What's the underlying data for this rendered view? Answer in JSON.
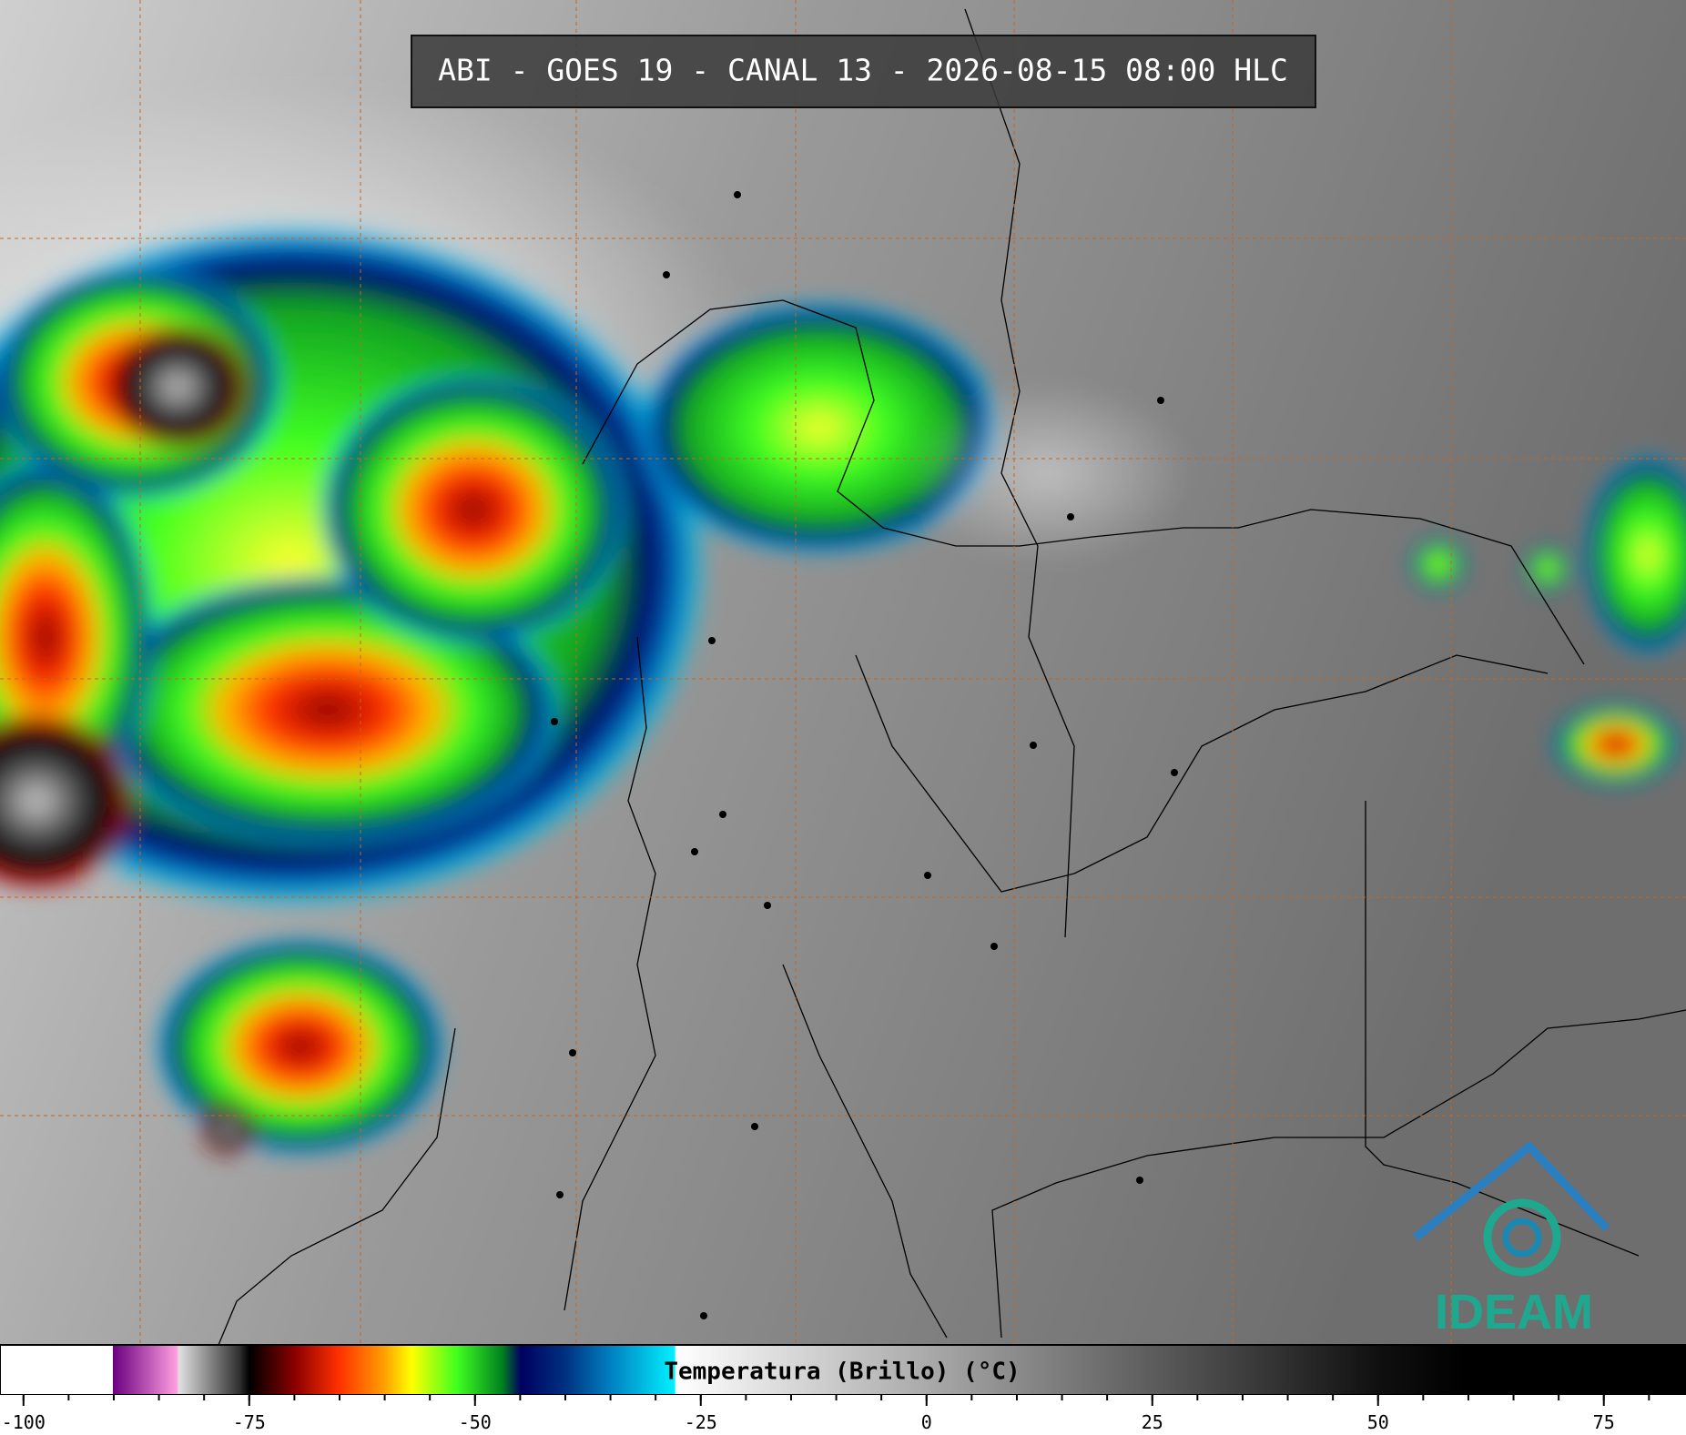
{
  "title": "ABI - GOES 19 - CANAL 13 - 2026-08-15 08:00 HLC",
  "colorbar": {
    "label": "Temperatura (Brillo) (°C)",
    "lim": [
      -102.6,
      84.1
    ],
    "ticks": [
      -100,
      -75,
      -50,
      -25,
      0,
      25,
      50,
      75
    ],
    "minor_tick_step": 5
  },
  "logo": "IDEAM"
}
